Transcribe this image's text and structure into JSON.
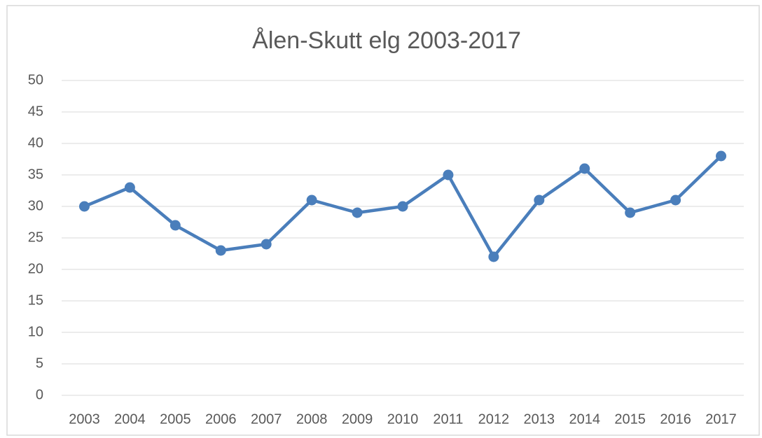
{
  "chart_data": {
    "type": "line",
    "title": "Ålen-Skutt elg 2003-2017",
    "categories": [
      "2003",
      "2004",
      "2005",
      "2006",
      "2007",
      "2008",
      "2009",
      "2010",
      "2011",
      "2012",
      "2013",
      "2014",
      "2015",
      "2016",
      "2017"
    ],
    "series": [
      {
        "color": "#4a7ebb",
        "values": [
          30,
          33,
          27,
          23,
          24,
          31,
          29,
          30,
          35,
          22,
          31,
          36,
          29,
          31,
          38
        ]
      }
    ],
    "ylim": [
      0,
      50
    ],
    "yticks": [
      0,
      5,
      10,
      15,
      20,
      25,
      30,
      35,
      40,
      45,
      50
    ],
    "grid": true
  }
}
